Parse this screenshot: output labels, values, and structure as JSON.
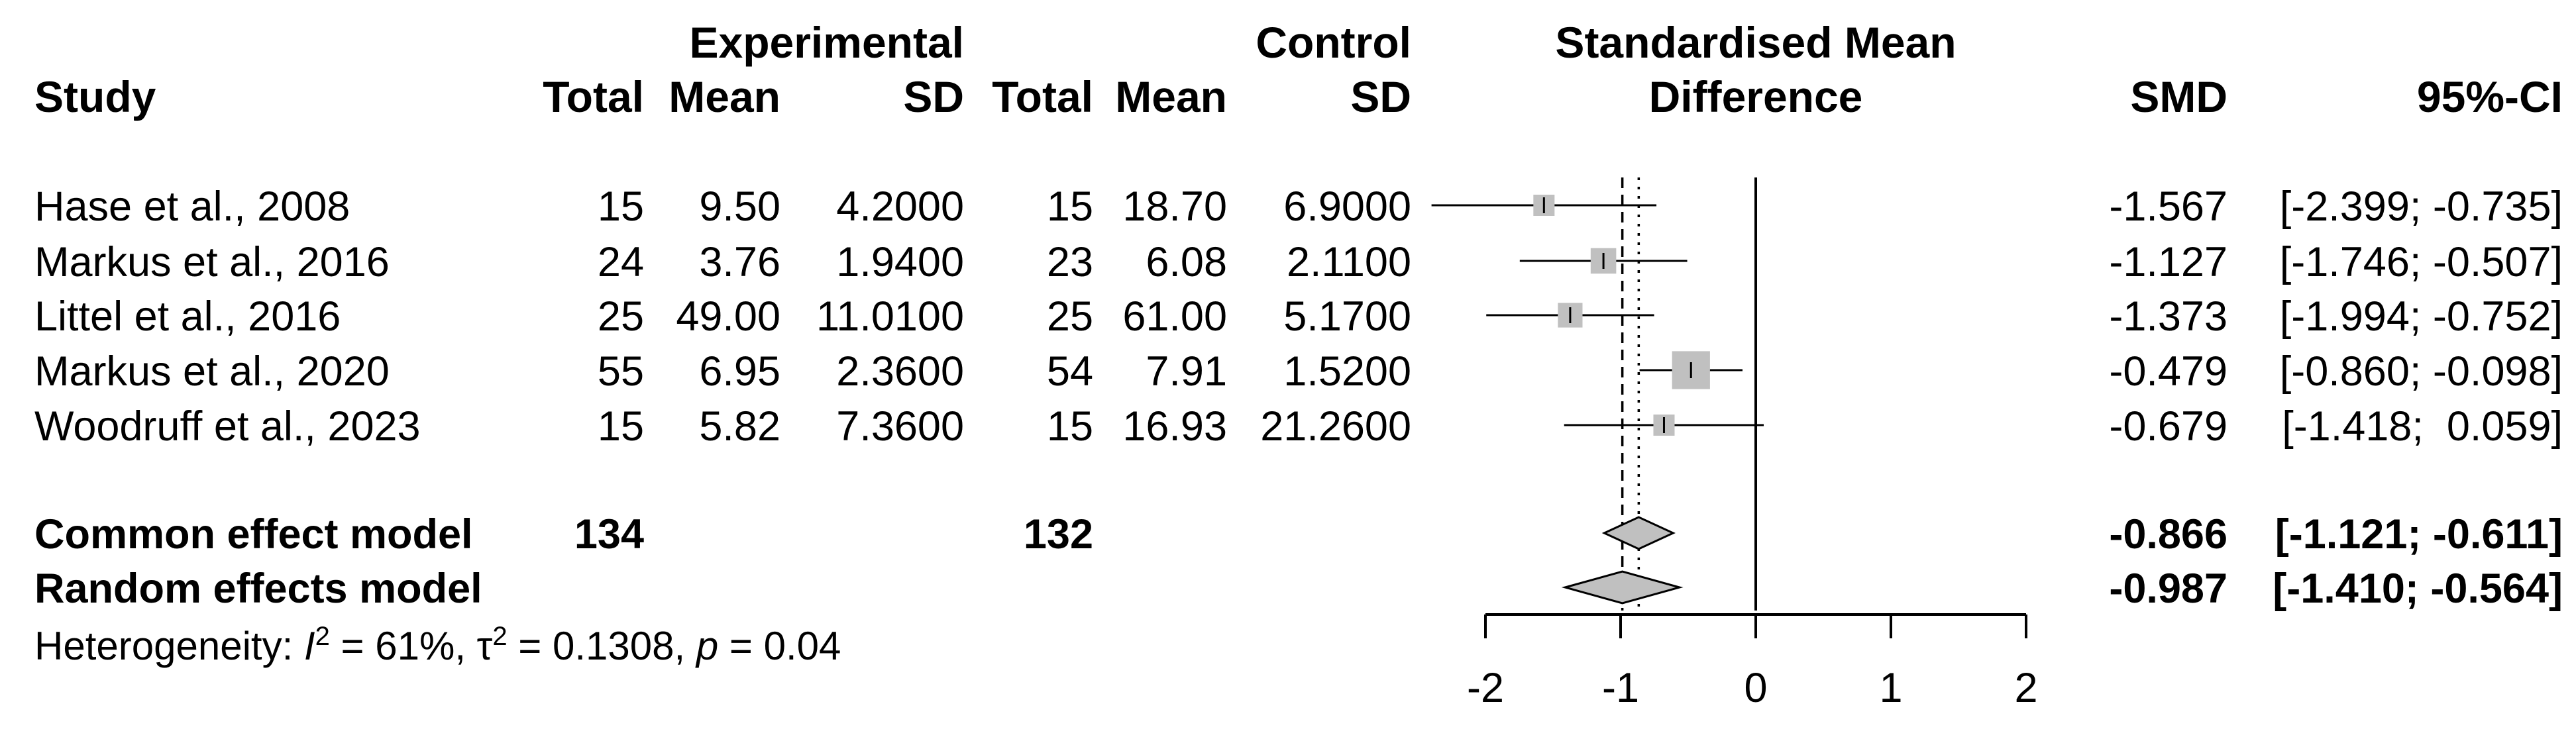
{
  "chart_data": {
    "type": "forest",
    "headers": {
      "study": "Study",
      "experimental": "Experimental",
      "control": "Control",
      "total": "Total",
      "mean": "Mean",
      "sd": "SD",
      "effect_line1": "Standardised Mean",
      "effect_line2": "Difference",
      "smd": "SMD",
      "ci": "95%-CI"
    },
    "studies": [
      {
        "name": "Hase et al., 2008",
        "e_total": "15",
        "e_mean": "9.50",
        "e_sd": "4.2000",
        "c_total": "15",
        "c_mean": "18.70",
        "c_sd": "6.9000",
        "smd": -1.567,
        "lower": -2.399,
        "upper": -0.735,
        "smd_text": "-1.567",
        "ci_text": "[-2.399; -0.735]",
        "weight": 1.0
      },
      {
        "name": "Markus et al., 2016",
        "e_total": "24",
        "e_mean": "3.76",
        "e_sd": "1.9400",
        "c_total": "23",
        "c_mean": "6.08",
        "c_sd": "2.1100",
        "smd": -1.127,
        "lower": -1.746,
        "upper": -0.507,
        "smd_text": "-1.127",
        "ci_text": "[-1.746; -0.507]",
        "weight": 1.45
      },
      {
        "name": "Littel et al., 2016",
        "e_total": "25",
        "e_mean": "49.00",
        "e_sd": "11.0100",
        "c_total": "25",
        "c_mean": "61.00",
        "c_sd": "5.1700",
        "smd": -1.373,
        "lower": -1.994,
        "upper": -0.752,
        "smd_text": "-1.373",
        "ci_text": "[-1.994; -0.752]",
        "weight": 1.35
      },
      {
        "name": "Markus et al., 2020",
        "e_total": "55",
        "e_mean": "6.95",
        "e_sd": "2.3600",
        "c_total": "54",
        "c_mean": "7.91",
        "c_sd": "1.5200",
        "smd": -0.479,
        "lower": -0.86,
        "upper": -0.098,
        "smd_text": "-0.479",
        "ci_text": "[-0.860; -0.098]",
        "weight": 3.2
      },
      {
        "name": "Woodruff et al., 2023",
        "e_total": "15",
        "e_mean": "5.82",
        "e_sd": "7.3600",
        "c_total": "15",
        "c_mean": "16.93",
        "c_sd": "21.2600",
        "smd": -0.679,
        "lower": -1.418,
        "upper": 0.059,
        "smd_text": "-0.679",
        "ci_text": "[-1.418;  0.059]",
        "weight": 1.0
      }
    ],
    "pooled": [
      {
        "name": "Common effect model",
        "e_total": "134",
        "c_total": "132",
        "smd": -0.866,
        "lower": -1.121,
        "upper": -0.611,
        "smd_text": "-0.866",
        "ci_text": "[-1.121; -0.611]"
      },
      {
        "name": "Random effects model",
        "e_total": "",
        "c_total": "",
        "smd": -0.987,
        "lower": -1.41,
        "upper": -0.564,
        "smd_text": "-0.987",
        "ci_text": "[-1.410; -0.564]"
      }
    ],
    "heterogeneity": {
      "label": "Heterogeneity:",
      "I2": "61%",
      "tau2": "0.1308",
      "p": "0.04"
    },
    "axis": {
      "min": -2,
      "max": 2,
      "ticks": [
        -2,
        -1,
        0,
        1,
        2
      ]
    },
    "colors": {
      "marker": "#c0c0c0",
      "line": "#000000",
      "text": "#000000"
    }
  }
}
